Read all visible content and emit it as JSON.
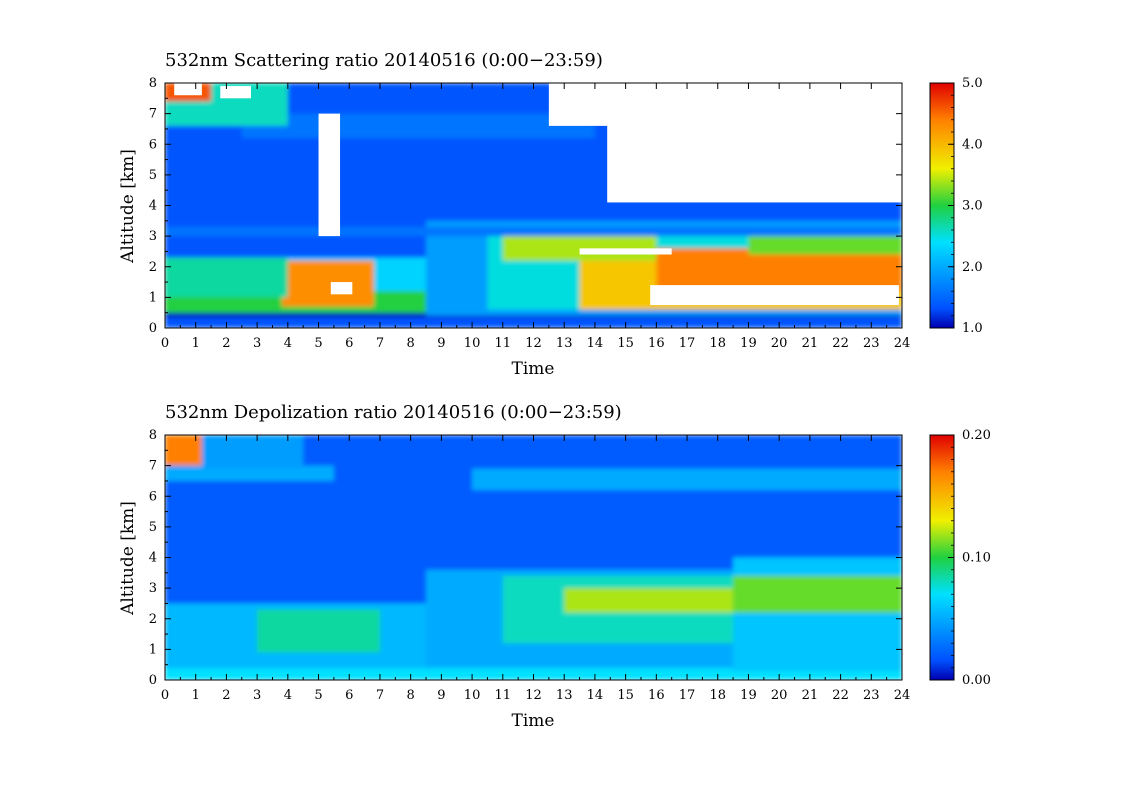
{
  "chart_data": [
    {
      "type": "heatmap",
      "title": "532nm Scattering ratio  20140516 (0:00−23:59)",
      "xlabel": "Time",
      "ylabel": "Altitude [km]",
      "xlim": [
        0,
        24
      ],
      "ylim": [
        0,
        8
      ],
      "xticks": [
        "0",
        "1",
        "2",
        "3",
        "4",
        "5",
        "6",
        "7",
        "8",
        "9",
        "10",
        "11",
        "12",
        "13",
        "14",
        "15",
        "16",
        "17",
        "18",
        "19",
        "20",
        "21",
        "22",
        "23",
        "24"
      ],
      "yticks": [
        "0",
        "1",
        "2",
        "3",
        "4",
        "5",
        "6",
        "7",
        "8"
      ],
      "colorbar": {
        "range": [
          1.0,
          5.0
        ],
        "ticks": [
          "1.0",
          "2.0",
          "3.0",
          "4.0",
          "5.0"
        ],
        "colormap": "jet"
      },
      "missing_color": "#ffffff",
      "bands": [
        {
          "x": [
            0,
            24
          ],
          "y": [
            0.0,
            8.0
          ],
          "value": 1.35
        },
        {
          "x": [
            0,
            24
          ],
          "y": [
            0.35,
            0.5
          ],
          "value": 1.0
        },
        {
          "x": [
            0,
            10.5
          ],
          "y": [
            0.5,
            2.3
          ],
          "value": 2.3
        },
        {
          "x": [
            0,
            8.5
          ],
          "y": [
            0.5,
            1.2
          ],
          "value": 3.0
        },
        {
          "x": [
            3.8,
            6.8
          ],
          "y": [
            0.7,
            2.2
          ],
          "value": 4.3
        },
        {
          "x": [
            0,
            4
          ],
          "y": [
            1.0,
            2.3
          ],
          "value": 2.7
        },
        {
          "x": [
            8.5,
            24
          ],
          "y": [
            0.4,
            3.5
          ],
          "value": 1.9
        },
        {
          "x": [
            10.5,
            24
          ],
          "y": [
            0.6,
            3.3
          ],
          "value": 2.5
        },
        {
          "x": [
            11,
            16
          ],
          "y": [
            2.2,
            3.2
          ],
          "value": 3.4
        },
        {
          "x": [
            13.5,
            24
          ],
          "y": [
            0.6,
            2.2
          ],
          "value": 3.9
        },
        {
          "x": [
            16,
            24
          ],
          "y": [
            1.2,
            2.6
          ],
          "value": 4.4
        },
        {
          "x": [
            19,
            24
          ],
          "y": [
            2.4,
            3.0
          ],
          "value": 3.2
        },
        {
          "x": [
            0,
            24
          ],
          "y": [
            3.0,
            3.3
          ],
          "value": 1.6
        },
        {
          "x": [
            2.5,
            14
          ],
          "y": [
            6.2,
            7.0
          ],
          "value": 1.6
        },
        {
          "x": [
            0,
            4
          ],
          "y": [
            6.6,
            8.0
          ],
          "value": 2.6
        },
        {
          "x": [
            0,
            1.5
          ],
          "y": [
            7.4,
            8.0
          ],
          "value": 4.6
        }
      ],
      "missing": [
        {
          "x": [
            5.0,
            5.7
          ],
          "y": [
            3.0,
            7.0
          ]
        },
        {
          "x": [
            14.4,
            24.0
          ],
          "y": [
            4.1,
            8.0
          ]
        },
        {
          "x": [
            12.5,
            24.0
          ],
          "y": [
            6.6,
            8.0
          ]
        },
        {
          "x": [
            5.4,
            6.1
          ],
          "y": [
            1.1,
            1.5
          ]
        },
        {
          "x": [
            15.8,
            23.9
          ],
          "y": [
            0.75,
            1.4
          ]
        },
        {
          "x": [
            13.5,
            16.5
          ],
          "y": [
            2.4,
            2.6
          ]
        },
        {
          "x": [
            0.3,
            1.2
          ],
          "y": [
            7.6,
            8.0
          ]
        },
        {
          "x": [
            1.8,
            2.8
          ],
          "y": [
            7.5,
            7.9
          ]
        }
      ]
    },
    {
      "type": "heatmap",
      "title": "532nm Depolization ratio  20140516 (0:00−23:59)",
      "xlabel": "Time",
      "ylabel": "Altitude [km]",
      "xlim": [
        0,
        24
      ],
      "ylim": [
        0,
        8
      ],
      "xticks": [
        "0",
        "1",
        "2",
        "3",
        "4",
        "5",
        "6",
        "7",
        "8",
        "9",
        "10",
        "11",
        "12",
        "13",
        "14",
        "15",
        "16",
        "17",
        "18",
        "19",
        "20",
        "21",
        "22",
        "23",
        "24"
      ],
      "yticks": [
        "0",
        "1",
        "2",
        "3",
        "4",
        "5",
        "6",
        "7",
        "8"
      ],
      "colorbar": {
        "range": [
          0.0,
          0.2
        ],
        "ticks": [
          "0.00",
          "0.10",
          "0.20"
        ],
        "colormap": "jet"
      },
      "missing_color": "#ffffff",
      "bands": [
        {
          "x": [
            0,
            24
          ],
          "y": [
            0.0,
            8.0
          ],
          "value": 0.02
        },
        {
          "x": [
            0,
            24
          ],
          "y": [
            0.0,
            0.4
          ],
          "value": 0.07
        },
        {
          "x": [
            0,
            8.5
          ],
          "y": [
            0.4,
            2.5
          ],
          "value": 0.055
        },
        {
          "x": [
            3.0,
            7.0
          ],
          "y": [
            0.9,
            2.3
          ],
          "value": 0.085
        },
        {
          "x": [
            8.5,
            24
          ],
          "y": [
            0.4,
            3.6
          ],
          "value": 0.05
        },
        {
          "x": [
            11,
            24
          ],
          "y": [
            1.2,
            3.4
          ],
          "value": 0.08
        },
        {
          "x": [
            13,
            24
          ],
          "y": [
            2.2,
            3.0
          ],
          "value": 0.12
        },
        {
          "x": [
            18.5,
            24
          ],
          "y": [
            0.3,
            4.0
          ],
          "value": 0.06
        },
        {
          "x": [
            18.5,
            24
          ],
          "y": [
            2.2,
            3.4
          ],
          "value": 0.11
        },
        {
          "x": [
            0,
            5.5
          ],
          "y": [
            6.5,
            7.0
          ],
          "value": 0.05
        },
        {
          "x": [
            10,
            24
          ],
          "y": [
            6.2,
            6.9
          ],
          "value": 0.05
        },
        {
          "x": [
            0,
            4.5
          ],
          "y": [
            6.9,
            8.0
          ],
          "value": 0.045
        },
        {
          "x": [
            0,
            1.2
          ],
          "y": [
            7.0,
            8.0
          ],
          "value": 0.17
        }
      ],
      "missing": []
    }
  ]
}
